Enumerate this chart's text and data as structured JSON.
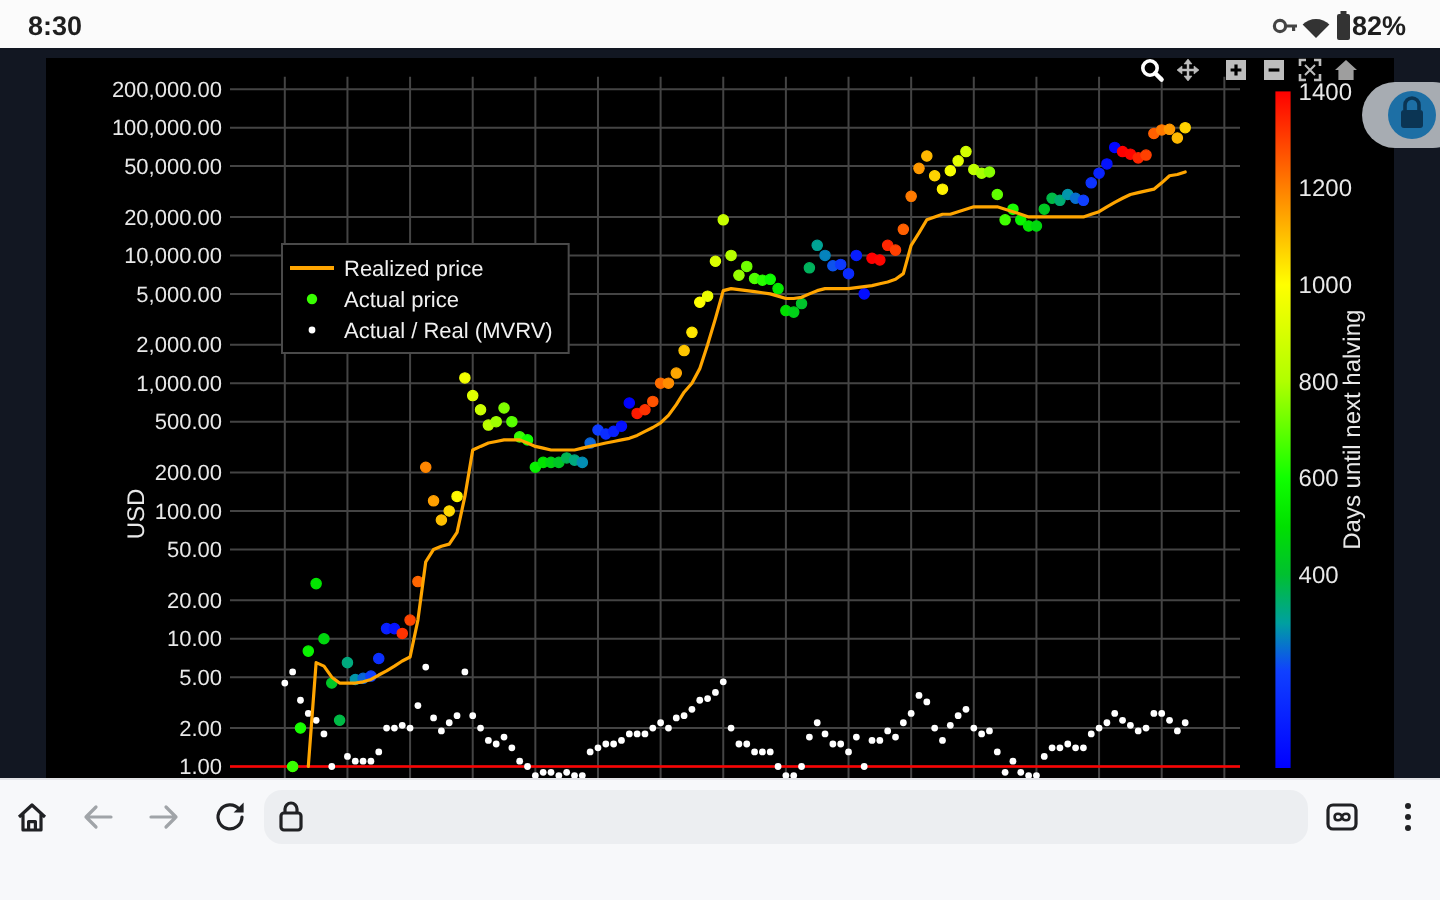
{
  "chart_data": {
    "type": "scatter",
    "ylabel": "USD",
    "clabel": "Days until next halving",
    "annotations": [
      "8:30",
      "82%"
    ],
    "categories": [
      null,
      null,
      null,
      null,
      null,
      null,
      null,
      null,
      null,
      null,
      null,
      null,
      null,
      null,
      null,
      null,
      null,
      null,
      null,
      null,
      null,
      null,
      null,
      null,
      null,
      null,
      null,
      null,
      null,
      null,
      null,
      null,
      null,
      null,
      null,
      null,
      null,
      null,
      null,
      null,
      null,
      null,
      null,
      null,
      null,
      null,
      null,
      null,
      null,
      null,
      null,
      null,
      null,
      null,
      null,
      null,
      null,
      null,
      null,
      null,
      null,
      null,
      null,
      null,
      null,
      null,
      null,
      null,
      null,
      null,
      null,
      null,
      null,
      null,
      null,
      null,
      null,
      null,
      null,
      null,
      null,
      null,
      null,
      null,
      null,
      null,
      null,
      null,
      null,
      null,
      null,
      null,
      null,
      null,
      null,
      null,
      null,
      null,
      null,
      null,
      null,
      null,
      null,
      null,
      null,
      null,
      null,
      null,
      null,
      null,
      null,
      null,
      null,
      null,
      null,
      null,
      null,
      null,
      null,
      null,
      null,
      null,
      null,
      null,
      null,
      null,
      null,
      null,
      null,
      null
    ],
    "series": [
      {
        "type": "line",
        "name": "Realized price",
        "color": "#ffa500",
        "values": [
          null,
          null,
          null,
          null,
          null,
          null,
          null,
          null,
          null,
          null,
          1.0,
          6.5,
          6.1,
          5.0,
          4.5,
          4.5,
          4.5,
          4.6,
          4.8,
          5.2,
          5.6,
          6.1,
          6.7,
          7.2,
          14,
          40,
          50,
          53,
          55,
          68,
          130,
          300,
          320,
          340,
          350,
          360,
          360,
          360,
          340,
          320,
          310,
          300,
          300,
          300,
          300,
          310,
          320,
          330,
          340,
          350,
          360,
          370,
          390,
          420,
          450,
          490,
          560,
          680,
          850,
          1000,
          1300,
          2000,
          3200,
          5300,
          5500,
          5400,
          5300,
          5200,
          5100,
          5000,
          4800,
          4600,
          4600,
          4700,
          5000,
          5300,
          5500,
          5500,
          5500,
          5500,
          5600,
          5700,
          5800,
          6000,
          6200,
          6500,
          7200,
          12000,
          15000,
          19000,
          20000,
          21000,
          21000,
          22000,
          23000,
          24000,
          24000,
          24000,
          24000,
          23000,
          22000,
          21000,
          20000,
          20000,
          20000,
          20000,
          20000,
          20000,
          20000,
          20000,
          21000,
          22000,
          24000,
          26000,
          28000,
          30000,
          31000,
          32000,
          33000,
          37000,
          42000,
          43000,
          45000,
          null,
          null,
          null,
          null,
          null,
          null,
          null
        ]
      },
      {
        "name": "Actual price",
        "marker": "circle",
        "values": [
          null,
          null,
          null,
          null,
          null,
          null,
          null,
          null,
          1.0,
          2.0,
          8.0,
          27,
          10,
          4.5,
          2.3,
          6.5,
          4.8,
          4.9,
          5.1,
          7.0,
          12,
          12,
          11,
          14,
          28,
          220,
          120,
          85,
          100,
          130,
          1100,
          800,
          620,
          470,
          500,
          640,
          500,
          380,
          360,
          220,
          240,
          240,
          240,
          260,
          250,
          240,
          340,
          430,
          400,
          420,
          460,
          700,
          580,
          620,
          720,
          1000,
          1000,
          1200,
          1800,
          2500,
          4300,
          4800,
          9000,
          19000,
          10000,
          7000,
          8200,
          6600,
          6400,
          6500,
          5500,
          3700,
          3600,
          4200,
          8000,
          12000,
          10000,
          8300,
          8500,
          7200,
          10000,
          5000,
          9500,
          9200,
          12000,
          11000,
          16000,
          29000,
          48000,
          60000,
          42000,
          33000,
          46000,
          55000,
          65000,
          47000,
          44000,
          45000,
          30000,
          19000,
          23000,
          19000,
          17000,
          17000,
          23000,
          28000,
          27000,
          30000,
          28000,
          27000,
          37000,
          44000,
          52000,
          70000,
          65000,
          62000,
          58000,
          61000,
          90000,
          96000,
          97000,
          83000,
          100000,
          null,
          null,
          null,
          null,
          null,
          null,
          null
        ],
        "cvalues": [
          null,
          null,
          null,
          null,
          null,
          null,
          null,
          null,
          650,
          610,
          560,
          520,
          470,
          420,
          380,
          330,
          290,
          240,
          200,
          150,
          100,
          60,
          1320,
          1290,
          1240,
          1190,
          1150,
          1100,
          1060,
          1010,
          970,
          920,
          870,
          830,
          780,
          740,
          690,
          650,
          600,
          550,
          510,
          460,
          420,
          370,
          330,
          280,
          240,
          190,
          140,
          100,
          50,
          10,
          1360,
          1320,
          1270,
          1230,
          1180,
          1140,
          1090,
          1040,
          1000,
          950,
          910,
          860,
          820,
          770,
          720,
          680,
          630,
          590,
          540,
          500,
          450,
          410,
          360,
          310,
          270,
          220,
          180,
          130,
          90,
          40,
          1400,
          1390,
          1340,
          1300,
          1250,
          1210,
          1160,
          1110,
          1070,
          1020,
          980,
          930,
          890,
          840,
          790,
          750,
          700,
          660,
          610,
          570,
          520,
          470,
          430,
          380,
          340,
          290,
          250,
          200,
          160,
          110,
          60,
          20,
          1400,
          1390,
          1340,
          1300,
          1250,
          1210,
          1160,
          1110,
          1070,
          null,
          null,
          null,
          null,
          null,
          null,
          null
        ],
        "colors": [
          null,
          null,
          null,
          null,
          null,
          null,
          null,
          null,
          "#38ff00",
          "#18ff00",
          "#0af300",
          "#03e600",
          "#00d60e",
          "#00c626",
          "#00ba46",
          "#00aa7e",
          "#0296aa",
          "#0a66d9",
          "#1040ff",
          "#0c30ff",
          "#0820ff",
          "#0513ff",
          "#ff3300",
          "#ff4600",
          "#ff6600",
          "#ff8600",
          "#ffa000",
          "#ffc000",
          "#ffd900",
          "#fff900",
          "#f3ff00",
          "#dfff00",
          "#ccff00",
          "#bcff00",
          "#a0ff00",
          "#80ff00",
          "#58ff00",
          "#38ff00",
          "#10ff00",
          "#08f000",
          "#02e300",
          "#00d313",
          "#00c626",
          "#00b652",
          "#00aa7e",
          "#038db3",
          "#0a66d9",
          "#0f3dff",
          "#0b2dff",
          "#0820ff",
          "#0410ff",
          "#0103ff",
          "#ff1a00",
          "#ff3300",
          "#ff5300",
          "#ff6d00",
          "#ff8d00",
          "#ffa600",
          "#ffc600",
          "#ffe600",
          "#ffff00",
          "#ebff00",
          "#dbff00",
          "#c8ff00",
          "#b8ff00",
          "#98ff00",
          "#70ff00",
          "#50ff00",
          "#28ff00",
          "#0efc00",
          "#06ec00",
          "#00e000",
          "#00d018",
          "#00c32b",
          "#00b35d",
          "#00a395",
          "#0583bd",
          "#0d53ec",
          "#0e3aff",
          "#0a2aff",
          "#071dff",
          "#030dff",
          "#ff0000",
          "#ff0600",
          "#ff2600",
          "#ff4000",
          "#ff6000",
          "#ff7a00",
          "#ff9900",
          "#ffb900",
          "#ffd300",
          "#fff200",
          "#f7ff00",
          "#e3ff00",
          "#d4ff00",
          "#c0ff00",
          "#a8ff00",
          "#88ff00",
          "#60ff00",
          "#40ff00",
          "#18ff00",
          "#0bf600",
          "#03e600",
          "#00d60e",
          "#00ca22",
          "#00ba46",
          "#00ad73",
          "#0296aa",
          "#0870d0",
          "#1040ff",
          "#0d33ff",
          "#0923ff",
          "#0513ff",
          "#0206ff",
          "#ff0000",
          "#ff0600",
          "#ff2600",
          "#ff4000",
          "#ff6000",
          "#ff7a00",
          "#ff9900",
          "#ffb900",
          "#ffd300",
          null,
          null,
          null,
          null,
          null,
          null,
          null
        ]
      },
      {
        "name": "Actual / Real (MVRV)",
        "color": "#ffffff",
        "marker": "circle",
        "values": [
          null,
          null,
          null,
          null,
          null,
          null,
          null,
          4.5,
          5.5,
          3.3,
          2.6,
          2.3,
          1.8,
          1.0,
          null,
          1.2,
          1.1,
          1.1,
          1.1,
          1.3,
          2.0,
          2.0,
          2.1,
          2.0,
          3.0,
          6.0,
          2.4,
          1.9,
          2.2,
          2.5,
          5.5,
          2.5,
          2.0,
          1.6,
          1.5,
          1.7,
          1.4,
          1.1,
          1.0,
          0.85,
          0.9,
          0.9,
          0.85,
          0.9,
          0.85,
          0.85,
          1.3,
          1.4,
          1.5,
          1.5,
          1.6,
          1.8,
          1.8,
          1.8,
          2.0,
          2.2,
          2.0,
          2.4,
          2.5,
          2.8,
          3.3,
          3.4,
          3.8,
          4.6,
          2.0,
          1.5,
          1.5,
          1.3,
          1.3,
          1.3,
          1.0,
          0.85,
          0.85,
          1.0,
          1.7,
          2.2,
          1.8,
          1.5,
          1.5,
          1.3,
          1.7,
          1.0,
          1.6,
          1.6,
          1.9,
          1.7,
          2.2,
          2.6,
          3.6,
          3.2,
          2.0,
          1.6,
          2.1,
          2.5,
          2.8,
          2.0,
          1.8,
          1.9,
          1.3,
          0.9,
          1.1,
          0.9,
          0.85,
          0.85,
          1.2,
          1.4,
          1.4,
          1.5,
          1.4,
          1.4,
          1.8,
          2.0,
          2.2,
          2.6,
          2.3,
          2.1,
          1.9,
          2.0,
          2.6,
          2.6,
          2.3,
          1.9,
          2.2,
          null,
          null,
          null,
          null,
          null,
          null,
          null
        ]
      }
    ],
    "ylim": [
      0.81,
      250000
    ],
    "yticks": [
      {
        "value": 1,
        "label": "1.00"
      },
      {
        "value": 2,
        "label": "2.00"
      },
      {
        "value": 5,
        "label": "5.00"
      },
      {
        "value": 10,
        "label": "10.00"
      },
      {
        "value": 20,
        "label": "20.00"
      },
      {
        "value": 50,
        "label": "50.00"
      },
      {
        "value": 100,
        "label": "100.00"
      },
      {
        "value": 200,
        "label": "200.00"
      },
      {
        "value": 500,
        "label": "500.00"
      },
      {
        "value": 1000,
        "label": "1,000.00"
      },
      {
        "value": 2000,
        "label": "2,000.00"
      },
      {
        "value": 5000,
        "label": "5,000.00"
      },
      {
        "value": 10000,
        "label": "10,000.00"
      },
      {
        "value": 20000,
        "label": "20,000.00"
      },
      {
        "value": 50000,
        "label": "50,000.00"
      },
      {
        "value": 100000,
        "label": "100,000.00"
      },
      {
        "value": 200000,
        "label": "200,000.00"
      }
    ],
    "log": true,
    "grid": true,
    "legend": "top left",
    "ref_lines": [
      {
        "axis": "y",
        "value": 1,
        "color": "#ff0000"
      }
    ],
    "clim": [
      0,
      1400
    ],
    "cticks": [
      400,
      600,
      800,
      1000,
      1200,
      1400
    ]
  }
}
